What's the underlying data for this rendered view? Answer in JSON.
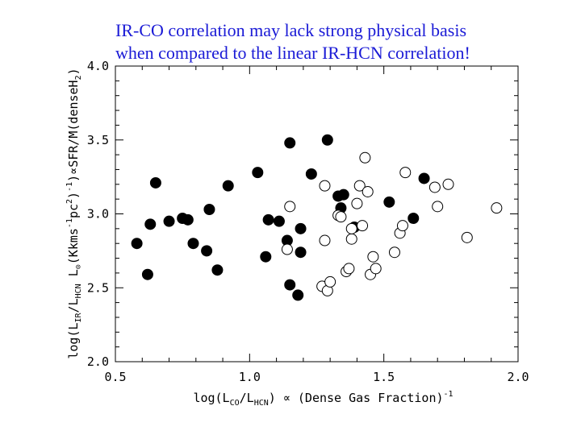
{
  "title": {
    "line1": "IR-CO correlation may lack strong physical basis",
    "line2": "when compared to the linear IR-HCN correlation!",
    "color": "#1a1ad6"
  },
  "chart_data": {
    "type": "scatter",
    "xlim": [
      0.5,
      2.0
    ],
    "ylim": [
      2.0,
      4.0
    ],
    "xticks": [
      "0.5",
      "1.0",
      "1.5",
      "2.0"
    ],
    "yticks": [
      "2.0",
      "2.5",
      "3.0",
      "3.5",
      "4.0"
    ],
    "xlabel": "log(L_CO/L_HCN) ∝ (Dense Gas Fraction)^-1",
    "ylabel": "log(L_IR/L_HCN  L_⊙(Kkms^-1pc^2)^-1)∝SFR/M(denseH_2)",
    "series": [
      {
        "marker": "filled-circle",
        "points": [
          [
            0.58,
            2.8
          ],
          [
            0.62,
            2.59
          ],
          [
            0.63,
            2.93
          ],
          [
            0.65,
            3.21
          ],
          [
            0.7,
            2.95
          ],
          [
            0.75,
            2.97
          ],
          [
            0.77,
            2.96
          ],
          [
            0.79,
            2.8
          ],
          [
            0.84,
            2.75
          ],
          [
            0.85,
            3.03
          ],
          [
            0.88,
            2.62
          ],
          [
            0.92,
            3.19
          ],
          [
            1.03,
            3.28
          ],
          [
            1.06,
            2.71
          ],
          [
            1.07,
            2.96
          ],
          [
            1.11,
            2.95
          ],
          [
            1.14,
            2.82
          ],
          [
            1.15,
            2.52
          ],
          [
            1.15,
            3.48
          ],
          [
            1.18,
            2.45
          ],
          [
            1.19,
            2.74
          ],
          [
            1.19,
            2.9
          ],
          [
            1.23,
            3.27
          ],
          [
            1.29,
            3.5
          ],
          [
            1.33,
            3.12
          ],
          [
            1.34,
            3.04
          ],
          [
            1.35,
            3.13
          ],
          [
            1.39,
            2.91
          ],
          [
            1.52,
            3.08
          ],
          [
            1.61,
            2.97
          ],
          [
            1.65,
            3.24
          ]
        ]
      },
      {
        "marker": "open-circle",
        "points": [
          [
            1.14,
            2.76
          ],
          [
            1.15,
            3.05
          ],
          [
            1.27,
            2.51
          ],
          [
            1.28,
            2.82
          ],
          [
            1.28,
            3.19
          ],
          [
            1.29,
            2.48
          ],
          [
            1.3,
            2.54
          ],
          [
            1.33,
            2.99
          ],
          [
            1.34,
            2.98
          ],
          [
            1.36,
            2.61
          ],
          [
            1.37,
            2.63
          ],
          [
            1.38,
            2.83
          ],
          [
            1.38,
            2.9
          ],
          [
            1.4,
            3.07
          ],
          [
            1.41,
            3.19
          ],
          [
            1.42,
            2.92
          ],
          [
            1.43,
            3.38
          ],
          [
            1.44,
            3.15
          ],
          [
            1.45,
            2.59
          ],
          [
            1.46,
            2.71
          ],
          [
            1.47,
            2.63
          ],
          [
            1.54,
            2.74
          ],
          [
            1.56,
            2.87
          ],
          [
            1.57,
            2.92
          ],
          [
            1.58,
            3.28
          ],
          [
            1.69,
            3.18
          ],
          [
            1.7,
            3.05
          ],
          [
            1.74,
            3.2
          ],
          [
            1.81,
            2.84
          ],
          [
            1.92,
            3.04
          ]
        ]
      }
    ]
  }
}
